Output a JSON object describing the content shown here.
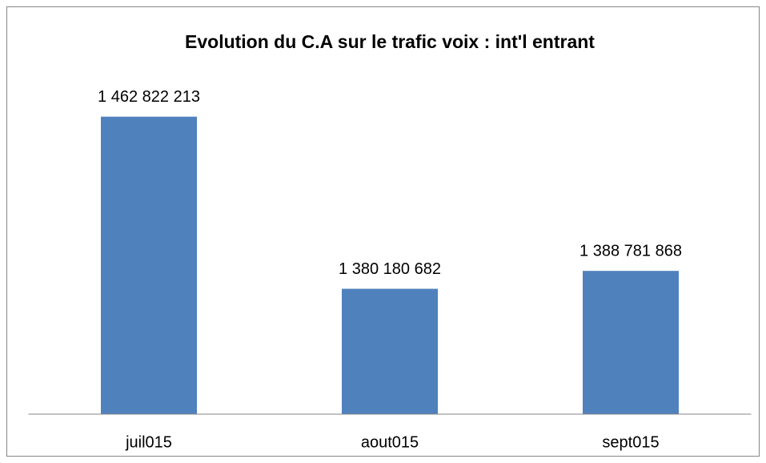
{
  "chart_data": {
    "type": "bar",
    "title": "Evolution du C.A sur le trafic voix : int'l entrant",
    "categories": [
      "juil015",
      "aout015",
      "sept015"
    ],
    "values": [
      1462822213,
      1380180682,
      1388781868
    ],
    "value_labels": [
      "1 462 822 213",
      "1 380 180 682",
      "1 388 781 868"
    ],
    "color": "#4f81bd",
    "ylim": [
      1320000000,
      1480000000
    ]
  }
}
